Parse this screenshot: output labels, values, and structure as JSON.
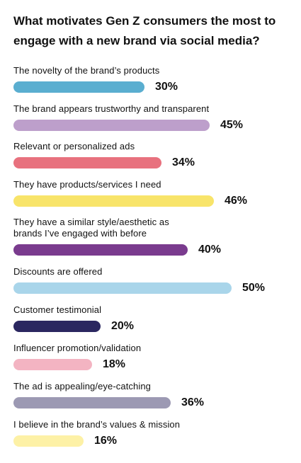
{
  "chart_data": {
    "type": "bar",
    "orientation": "horizontal",
    "title": "What motivates Gen Z consumers the most to engage with a new brand via social media?",
    "value_suffix": "%",
    "xlim": [
      0,
      50
    ],
    "grid": false,
    "legend": "none",
    "categories": [
      "The novelty of the brand’s products",
      "The brand appears trustworthy and transparent",
      "Relevant or personalized ads",
      "They have products/services I need",
      "They have a similar style/aesthetic as\nbrands I’ve engaged with before",
      "Discounts are offered",
      "Customer testimonial",
      "Influencer promotion/validation",
      "The ad is appealing/eye-catching",
      "I believe in the brand’s values & mission"
    ],
    "values": [
      30,
      45,
      34,
      46,
      40,
      50,
      20,
      18,
      36,
      16
    ],
    "value_labels": [
      "30%",
      "45%",
      "34%",
      "46%",
      "40%",
      "50%",
      "20%",
      "18%",
      "36%",
      "16%"
    ],
    "colors": [
      "#5aaed0",
      "#bd9fcb",
      "#e8717e",
      "#f8e46a",
      "#7a3b8e",
      "#a9d5ea",
      "#2b2760",
      "#f3b4c2",
      "#9c99b3",
      "#fdf1a6"
    ]
  }
}
